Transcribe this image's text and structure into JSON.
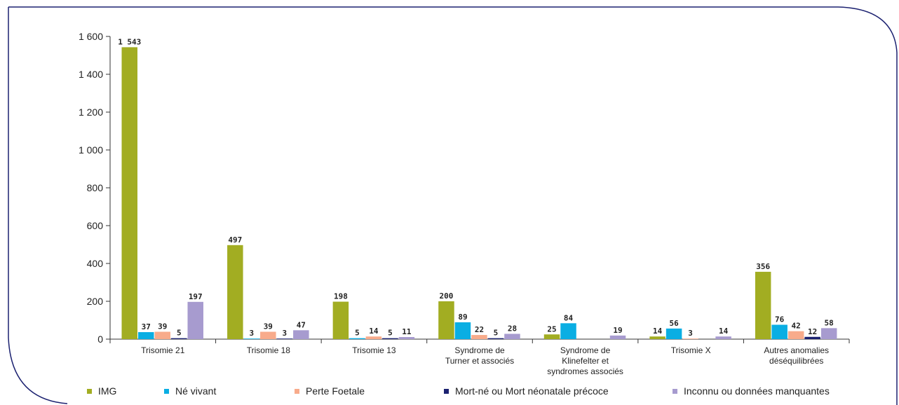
{
  "chart_data": {
    "type": "bar",
    "title": "",
    "xlabel": "",
    "ylabel": "",
    "ylim": [
      0,
      1600
    ],
    "yticks": [
      0,
      200,
      400,
      600,
      800,
      1000,
      1200,
      1400,
      1600
    ],
    "ytick_labels": [
      "0",
      "200",
      "400",
      "600",
      "800",
      "1 000",
      "1 200",
      "1 400",
      "1 600"
    ],
    "categories": [
      [
        "Trisomie 21"
      ],
      [
        "Trisomie 18"
      ],
      [
        "Trisomie 13"
      ],
      [
        "Syndrome de",
        "Turner et associés"
      ],
      [
        "Syndrome de",
        "Klinefelter et",
        "syndromes associés"
      ],
      [
        "Trisomie X"
      ],
      [
        "Autres anomalies",
        "déséquilibrées"
      ]
    ],
    "series": [
      {
        "name": "IMG",
        "color": "#a2ad22",
        "values": [
          1543,
          497,
          198,
          200,
          25,
          14,
          356
        ],
        "labels": [
          "1 543",
          "497",
          "198",
          "200",
          "25",
          "14",
          "356"
        ]
      },
      {
        "name": "Né vivant",
        "color": "#0aaee3",
        "values": [
          37,
          3,
          5,
          89,
          84,
          56,
          76
        ],
        "labels": [
          "37",
          "3",
          "5",
          "89",
          "84",
          "56",
          "76"
        ]
      },
      {
        "name": "Perte Foetale",
        "color": "#f8ab8b",
        "values": [
          39,
          39,
          14,
          22,
          null,
          3,
          42
        ],
        "labels": [
          "39",
          "39",
          "14",
          "22",
          "",
          "3",
          "42"
        ]
      },
      {
        "name": "Mort-né ou Mort néonatale précoce",
        "color": "#1b2170",
        "values": [
          5,
          3,
          5,
          5,
          null,
          null,
          12
        ],
        "labels": [
          "5",
          "3",
          "5",
          "5",
          "",
          "",
          "12"
        ]
      },
      {
        "name": "Inconnu ou données manquantes",
        "color": "#a79bcf",
        "values": [
          197,
          47,
          11,
          28,
          19,
          14,
          58
        ],
        "labels": [
          "197",
          "47",
          "11",
          "28",
          "19",
          "14",
          "58"
        ]
      }
    ],
    "legend_position": "bottom",
    "grid": false
  },
  "colors": {
    "frame": "#1b2170",
    "axis": "#333333"
  }
}
